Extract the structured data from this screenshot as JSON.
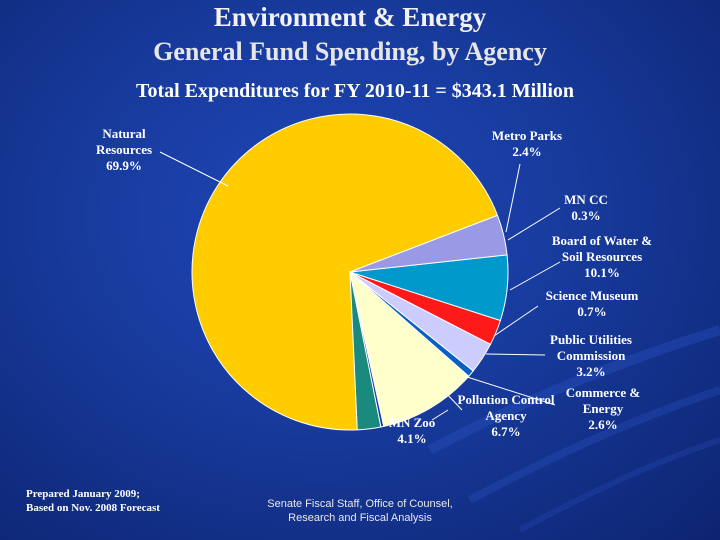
{
  "chart_data": {
    "type": "pie",
    "title": "Environment & Energy",
    "subtitle_line": "General Fund Spending, by Agency",
    "total_line": "Total Expenditures for FY 2010-11 = $343.1 Million",
    "slices": [
      {
        "name_lines": [
          "Natural",
          "Resources"
        ],
        "pct_label": "69.9%",
        "value": 69.9,
        "color": "#ffcc00"
      },
      {
        "name_lines": [
          "Metro Parks"
        ],
        "pct_label": "2.4%",
        "value": 2.4,
        "color": "#1a8a7e"
      },
      {
        "name_lines": [
          "MN CC"
        ],
        "pct_label": "0.3%",
        "value": 0.3,
        "color": "#1c3fa0"
      },
      {
        "name_lines": [
          "Board of Water &",
          "Soil Resources"
        ],
        "pct_label": "10.1%",
        "value": 10.1,
        "color": "#ffffcc"
      },
      {
        "name_lines": [
          "Science Museum"
        ],
        "pct_label": "0.7%",
        "value": 0.7,
        "color": "#0a5fc4"
      },
      {
        "name_lines": [
          "Public Utilities",
          "Commission"
        ],
        "pct_label": "3.2%",
        "value": 3.2,
        "color": "#ccccff"
      },
      {
        "name_lines": [
          "Commerce &",
          "Energy"
        ],
        "pct_label": "2.6%",
        "value": 2.6,
        "color": "#ff1a1a"
      },
      {
        "name_lines": [
          "Pollution Control",
          "Agency"
        ],
        "pct_label": "6.7%",
        "value": 6.7,
        "color": "#0099cc"
      },
      {
        "name_lines": [
          "MN Zoo"
        ],
        "pct_label": "4.1%",
        "value": 4.1,
        "color": "#9999e6"
      }
    ]
  },
  "footer": {
    "prepared_line1": "Prepared January 2009;",
    "prepared_line2": "Based on Nov. 2008 Forecast",
    "source_line1": "Senate Fiscal Staff, Office of Counsel,",
    "source_line2": "Research and Fiscal Analysis"
  }
}
